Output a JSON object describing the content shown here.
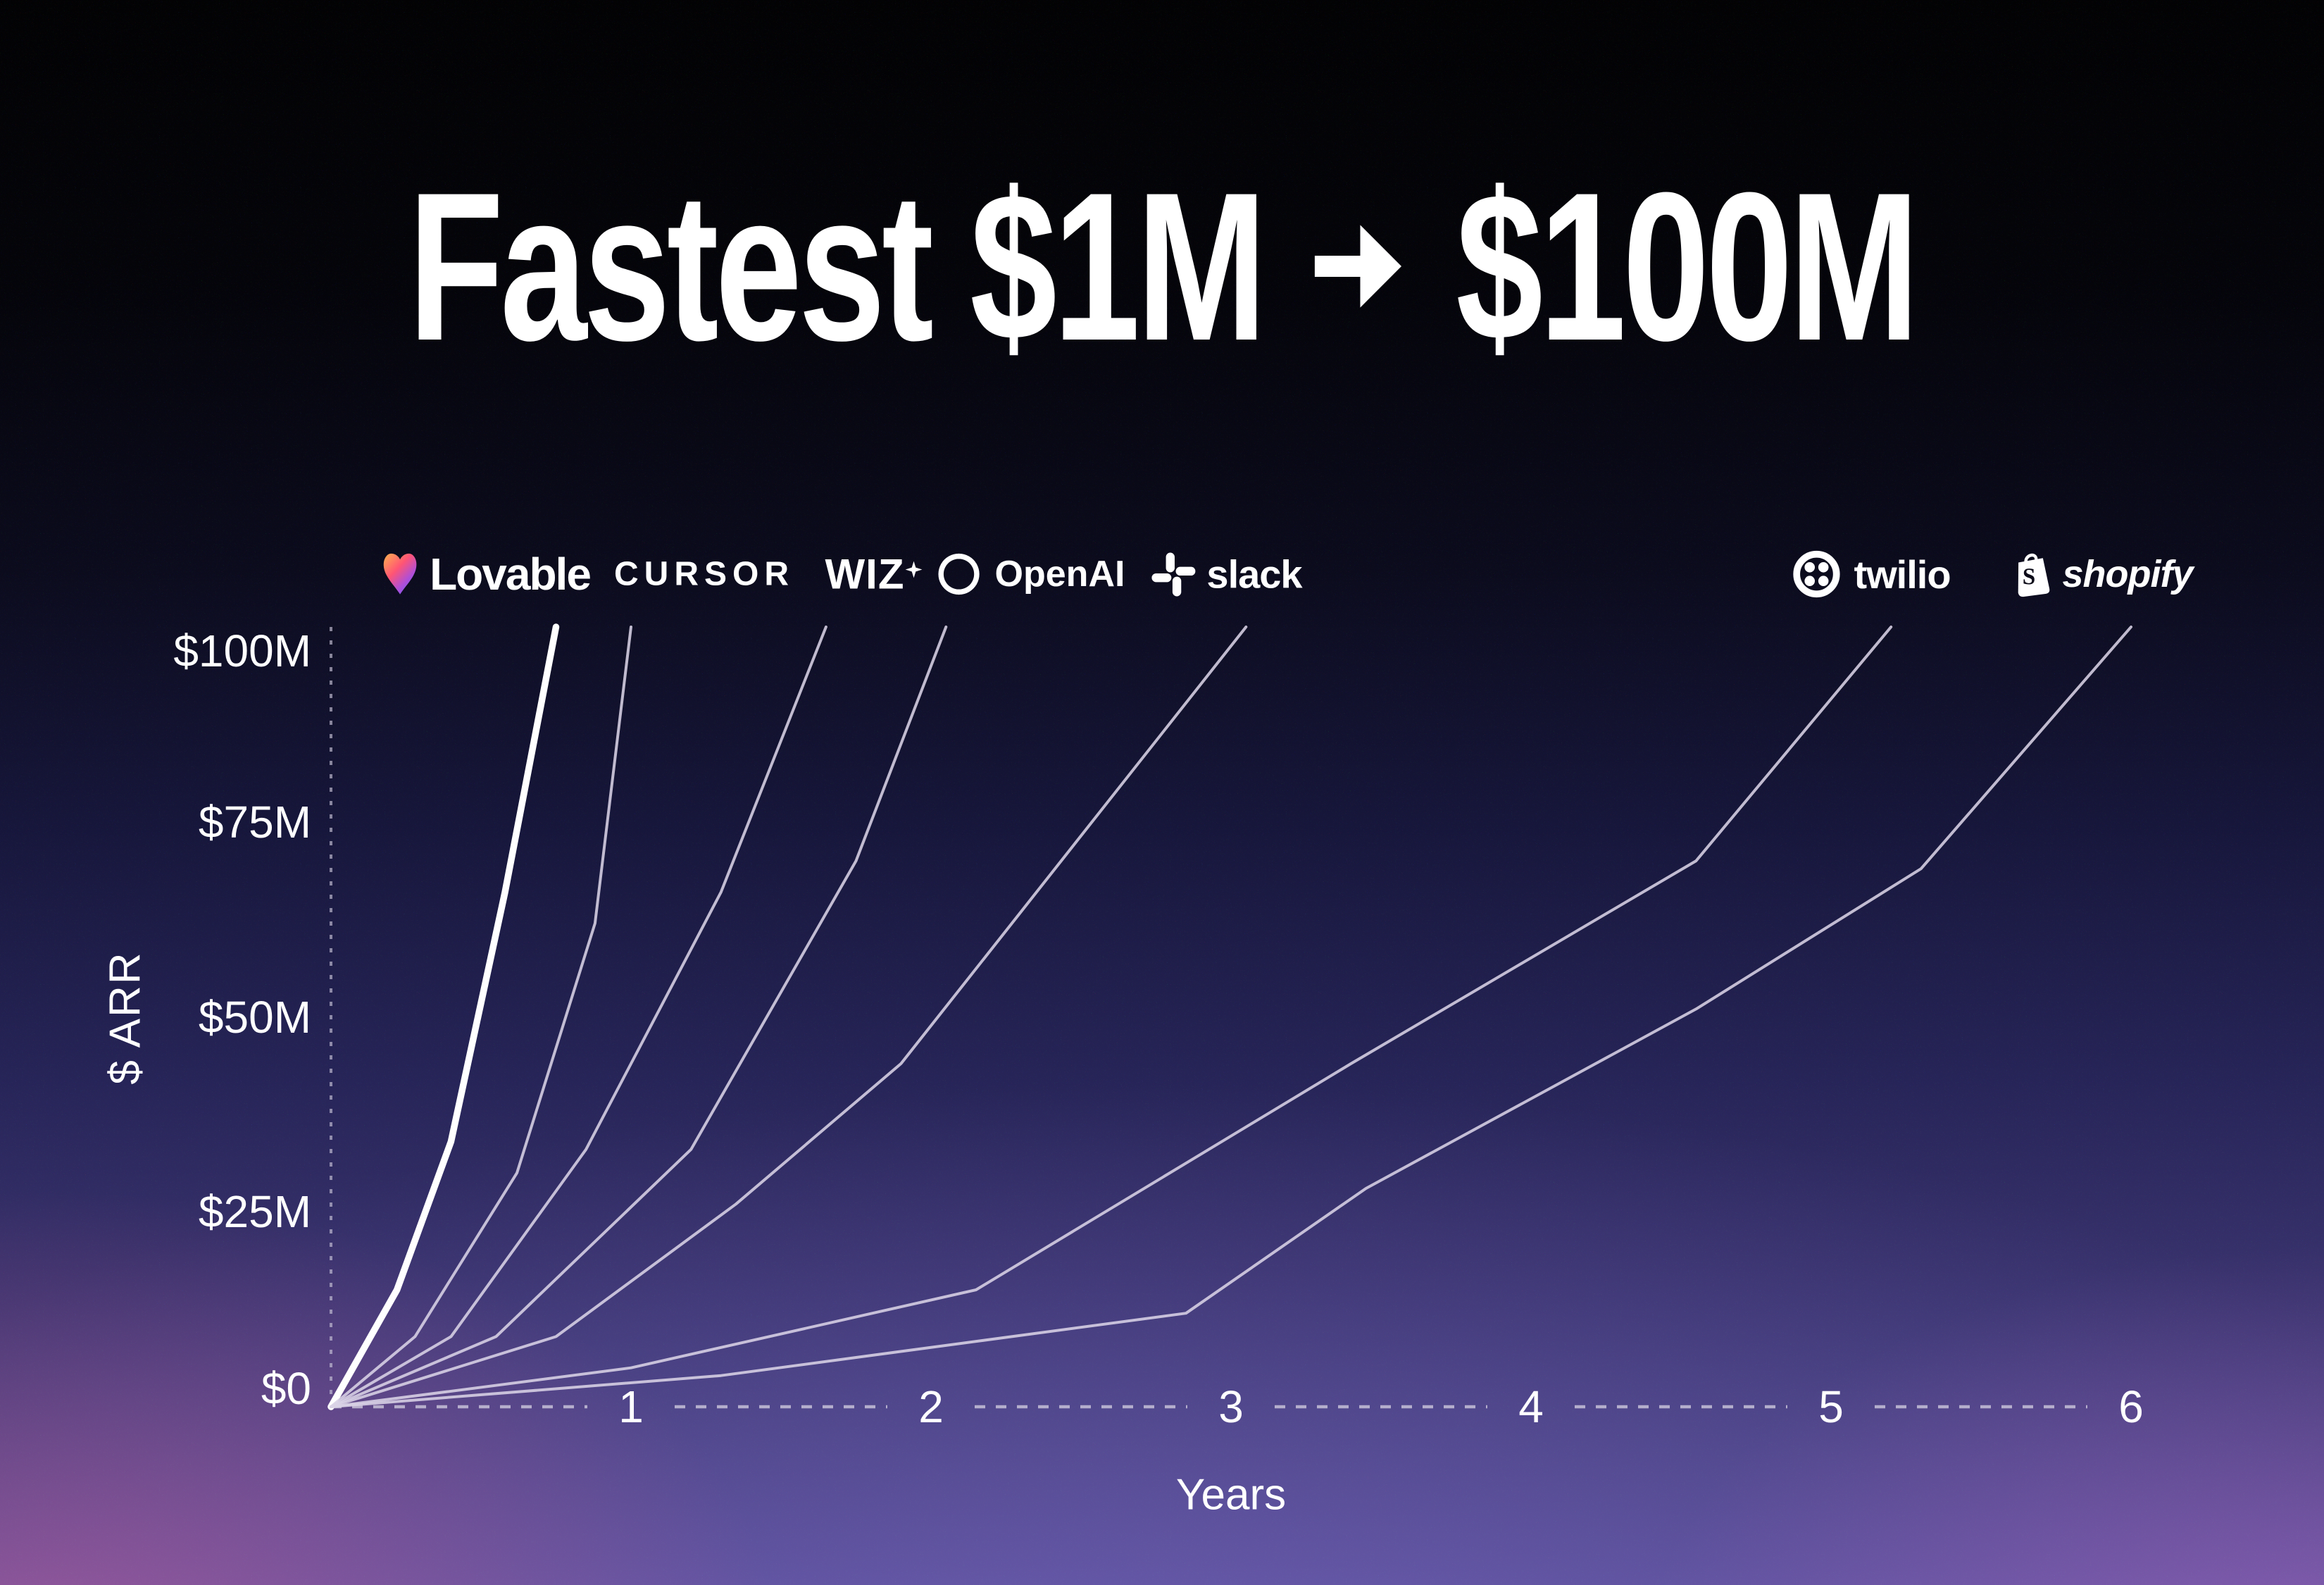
{
  "title": {
    "full": "Fastest $1M → $100M",
    "left": "Fastest $1M",
    "arrow": "→",
    "right": "$100M"
  },
  "y_axis": {
    "title": "$ ARR",
    "ticks": [
      {
        "label": "$100M",
        "value": 100
      },
      {
        "label": "$75M",
        "value": 75
      },
      {
        "label": "$50M",
        "value": 50
      },
      {
        "label": "$25M",
        "value": 25
      },
      {
        "label": "$0",
        "value": 0
      }
    ]
  },
  "x_axis": {
    "title": "Years",
    "ticks": [
      {
        "label": "1",
        "value": 1
      },
      {
        "label": "2",
        "value": 2
      },
      {
        "label": "3",
        "value": 3
      },
      {
        "label": "4",
        "value": 4
      },
      {
        "label": "5",
        "value": 5
      },
      {
        "label": "6",
        "value": 6
      }
    ]
  },
  "logos": [
    {
      "name": "Lovable",
      "label": "Lovable",
      "icon": "lovable-heart-icon"
    },
    {
      "name": "Cursor",
      "label": "CURSOR",
      "icon": "none"
    },
    {
      "name": "Wiz",
      "label": "WIZ",
      "icon": "wiz-sparkle-icon"
    },
    {
      "name": "OpenAI",
      "label": "OpenAI",
      "icon": "openai-icon"
    },
    {
      "name": "Slack",
      "label": "slack",
      "icon": "slack-icon"
    },
    {
      "name": "Twilio",
      "label": "twilio",
      "icon": "twilio-icon"
    },
    {
      "name": "Shopify",
      "label": "shopify",
      "icon": "shopify-bag-icon"
    }
  ],
  "chart_data": {
    "type": "line",
    "title": "Fastest $1M → $100M",
    "xlabel": "Years",
    "ylabel": "$ ARR",
    "xlim": [
      0,
      6.35
    ],
    "ylim": [
      0,
      100
    ],
    "x_ticks": [
      1,
      2,
      3,
      4,
      5,
      6
    ],
    "y_tick_labels": [
      "$100M",
      "$75M",
      "$50M",
      "$25M",
      "$0"
    ],
    "grid": false,
    "legend_position": "logos-above-line-endpoints",
    "units": {
      "x": "years",
      "y": "ARR in $M"
    },
    "series": [
      {
        "name": "Lovable",
        "emphasis": true,
        "color": "#ffffff",
        "years_to_100m": 0.75,
        "points": [
          [
            0,
            0
          ],
          [
            0.22,
            15
          ],
          [
            0.4,
            34
          ],
          [
            0.58,
            66
          ],
          [
            0.75,
            100
          ]
        ]
      },
      {
        "name": "Cursor",
        "emphasis": false,
        "color": "#d9d3e6",
        "years_to_100m": 1.0,
        "points": [
          [
            0,
            0
          ],
          [
            0.28,
            9
          ],
          [
            0.62,
            30
          ],
          [
            0.88,
            62
          ],
          [
            1.0,
            100
          ]
        ]
      },
      {
        "name": "Wiz",
        "emphasis": false,
        "color": "#d9d3e6",
        "years_to_100m": 1.65,
        "points": [
          [
            0,
            0
          ],
          [
            0.4,
            9
          ],
          [
            0.85,
            33
          ],
          [
            1.3,
            66
          ],
          [
            1.65,
            100
          ]
        ]
      },
      {
        "name": "OpenAI",
        "emphasis": false,
        "color": "#d9d3e6",
        "years_to_100m": 2.05,
        "points": [
          [
            0,
            0
          ],
          [
            0.55,
            9
          ],
          [
            1.2,
            33
          ],
          [
            1.75,
            70
          ],
          [
            2.05,
            100
          ]
        ]
      },
      {
        "name": "Slack",
        "emphasis": false,
        "color": "#d9d3e6",
        "years_to_100m": 3.05,
        "points": [
          [
            0,
            0
          ],
          [
            0.75,
            9
          ],
          [
            1.35,
            26
          ],
          [
            1.9,
            44
          ],
          [
            3.05,
            100
          ]
        ]
      },
      {
        "name": "Twilio",
        "emphasis": false,
        "color": "#d9d3e6",
        "years_to_100m": 5.2,
        "points": [
          [
            0,
            0
          ],
          [
            1.0,
            5
          ],
          [
            2.15,
            15
          ],
          [
            3.4,
            44
          ],
          [
            4.55,
            70
          ],
          [
            5.2,
            100
          ]
        ]
      },
      {
        "name": "Shopify",
        "emphasis": false,
        "color": "#d9d3e6",
        "years_to_100m": 6.0,
        "points": [
          [
            0,
            0
          ],
          [
            1.3,
            4
          ],
          [
            2.85,
            12
          ],
          [
            3.45,
            28
          ],
          [
            4.55,
            51
          ],
          [
            5.3,
            69
          ],
          [
            6.0,
            100
          ]
        ]
      }
    ]
  },
  "colors": {
    "background_top": "#020203",
    "background_mid": "#16163a",
    "background_bottom": "#554b92",
    "glow_pink": "#e05f9a",
    "glow_magenta": "#c46ecd",
    "line_thin": "#d9d3e6",
    "line_emphasis": "#ffffff",
    "axis_dash": "#b7b0c9",
    "text": "#ffffff",
    "lovable_gradient": [
      "#ffb14d",
      "#ff5574",
      "#b04fd6",
      "#6c5bff"
    ]
  }
}
